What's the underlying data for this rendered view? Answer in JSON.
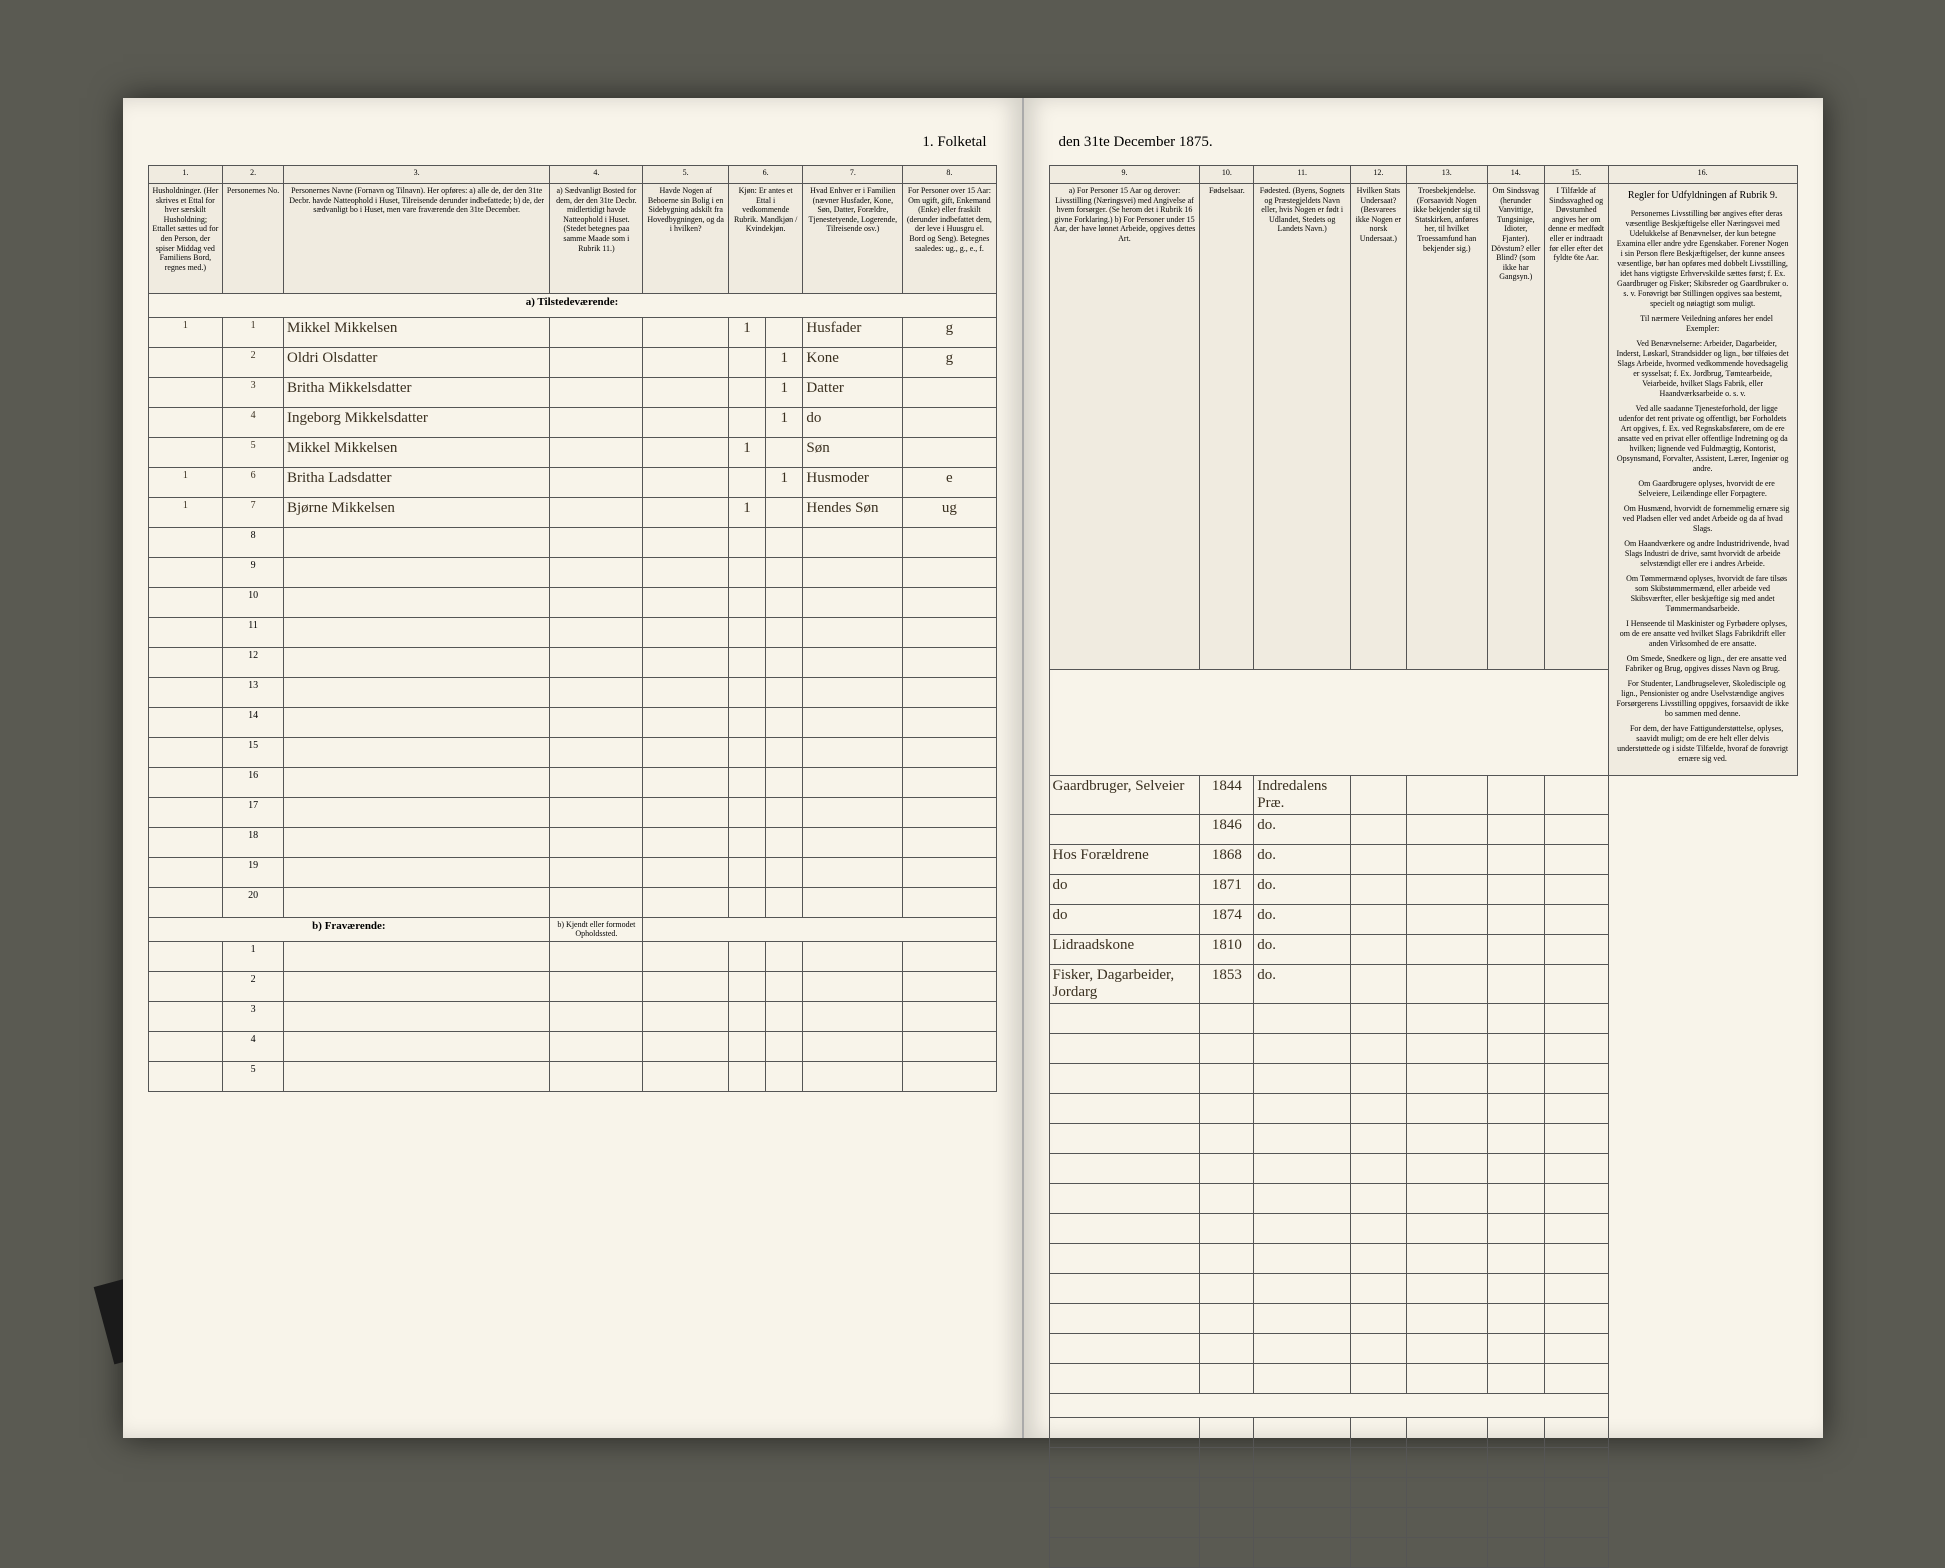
{
  "title_left": "1. Folketal",
  "title_right": "den 31te December 1875.",
  "col_numbers_left": [
    "1.",
    "2.",
    "3.",
    "4.",
    "5.",
    "6.",
    "7.",
    "8."
  ],
  "col_numbers_right": [
    "9.",
    "10.",
    "11.",
    "12.",
    "13.",
    "14.",
    "15.",
    "16."
  ],
  "headers_left": {
    "c1": "Husholdninger. (Her skrives et Ettal for hver særskilt Husholdning; Ettallet sættes ud for den Person, der spiser Middag ved Familiens Bord, regnes med.)",
    "c2": "Personernes No.",
    "c3": "Personernes Navne (Fornavn og Tilnavn). Her opføres: a) alle de, der den 31te Decbr. havde Natteophold i Huset, Tilreisende derunder indbefattede; b) de, der sædvanligt bo i Huset, men vare fraværende den 31te December.",
    "c4": "a) Sædvanligt Bosted for dem, der den 31te Decbr. midlertidigt havde Natteophold i Huset. (Stedet betegnes paa samme Maade som i Rubrik 11.)",
    "c5": "Havde Nogen af Beboerne sin Bolig i en Sidebygning adskilt fra Hovedbygningen, og da i hvilken?",
    "c6": "Kjøn: Er antes et Ettal i vedkommende Rubrik. Mandkjøn / Kvindekjøn.",
    "c7": "Hvad Enhver er i Familien (nævner Husfader, Kone, Søn, Datter, Forældre, Tjenestetyende, Logerende, Tilreisende osv.)",
    "c8": "For Personer over 15 Aar: Om ugift, gift, Enkemand (Enke) eller fraskilt (derunder indbefattet dem, der leve i Huusgru el. Bord og Seng). Betegnes saaledes: ug., g., e., f."
  },
  "headers_right": {
    "c9": "a) For Personer 15 Aar og derover: Livsstilling (Næringsvei) med Angivelse af hvem forsørger. (Se herom det i Rubrik 16 givne Forklaring.) b) For Personer under 15 Aar, der have lønnet Arbeide, opgives dettes Art.",
    "c10": "Fødselsaar.",
    "c11": "Fødested. (Byens, Sognets og Præstegjeldets Navn eller, hvis Nogen er født i Udlandet, Stedets og Landets Navn.)",
    "c12": "Hvilken Stats Undersaat? (Besvarees ikke Nogen er norsk Undersaat.)",
    "c13": "Troesbekjendelse. (Forsaavidt Nogen ikke bekjender sig til Statskirken, anføres her, til hvilket Troessamfund han bekjender sig.)",
    "c14": "Om Sindssvag (herunder Vanvittige, Tungsinige, Idioter, Fjanter). Dövstum? eller Blind? (som ikke har Gangsyn.)",
    "c15": "I Tilfælde af Sindssvaghed og Døvstumhed angives her om denne er medfødt eller er indtraadt før eller efter det fyldte 6te Aar.",
    "c16": "Regler for Udfyldningen af Rubrik 9."
  },
  "section_a": "a) Tilstedeværende:",
  "section_b": "b) Fraværende:",
  "section_b_col4": "b) Kjendt eller formodet Opholdssted.",
  "rows": [
    {
      "hh": "1",
      "no": "1",
      "name": "Mikkel Mikkelsen",
      "c4": "",
      "c5": "",
      "c6a": "1",
      "c6b": "",
      "c7": "Husfader",
      "c8": "g",
      "c9": "Gaardbruger, Selveier",
      "c10": "1844",
      "c11": "Indredalens Præ.",
      "c12": "",
      "c13": "",
      "c14": "",
      "c15": ""
    },
    {
      "hh": "",
      "no": "2",
      "name": "Oldri Olsdatter",
      "c4": "",
      "c5": "",
      "c6a": "",
      "c6b": "1",
      "c7": "Kone",
      "c8": "g",
      "c9": "",
      "c10": "1846",
      "c11": "do.",
      "c12": "",
      "c13": "",
      "c14": "",
      "c15": ""
    },
    {
      "hh": "",
      "no": "3",
      "name": "Britha Mikkelsdatter",
      "c4": "",
      "c5": "",
      "c6a": "",
      "c6b": "1",
      "c7": "Datter",
      "c8": "",
      "c9": "Hos Forældrene",
      "c10": "1868",
      "c11": "do.",
      "c12": "",
      "c13": "",
      "c14": "",
      "c15": ""
    },
    {
      "hh": "",
      "no": "4",
      "name": "Ingeborg Mikkelsdatter",
      "c4": "",
      "c5": "",
      "c6a": "",
      "c6b": "1",
      "c7": "do",
      "c8": "",
      "c9": "do",
      "c10": "1871",
      "c11": "do.",
      "c12": "",
      "c13": "",
      "c14": "",
      "c15": ""
    },
    {
      "hh": "",
      "no": "5",
      "name": "Mikkel Mikkelsen",
      "c4": "",
      "c5": "",
      "c6a": "1",
      "c6b": "",
      "c7": "Søn",
      "c8": "",
      "c9": "do",
      "c10": "1874",
      "c11": "do.",
      "c12": "",
      "c13": "",
      "c14": "",
      "c15": ""
    },
    {
      "hh": "1",
      "no": "6",
      "name": "Britha Ladsdatter",
      "c4": "",
      "c5": "",
      "c6a": "",
      "c6b": "1",
      "c7": "Husmoder",
      "c8": "e",
      "c9": "Lidraadskone",
      "c10": "1810",
      "c11": "do.",
      "c12": "",
      "c13": "",
      "c14": "",
      "c15": ""
    },
    {
      "hh": "1",
      "no": "7",
      "name": "Bjørne Mikkelsen",
      "c4": "",
      "c5": "",
      "c6a": "1",
      "c6b": "",
      "c7": "Hendes Søn",
      "c8": "ug",
      "c9": "Fisker, Dagarbeider, Jordarg",
      "c10": "1853",
      "c11": "do.",
      "c12": "",
      "c13": "",
      "c14": "",
      "c15": ""
    }
  ],
  "empty_rows_a": [
    8,
    9,
    10,
    11,
    12,
    13,
    14,
    15,
    16,
    17,
    18,
    19,
    20
  ],
  "empty_rows_b": [
    1,
    2,
    3,
    4,
    5
  ],
  "instructions": {
    "title": "Regler for Udfyldningen af Rubrik 9.",
    "paragraphs": [
      "Personernes Livsstilling bør angives efter deras væsentlige Beskjæftigelse eller Næringsvei med Udelukkelse af Benævnelser, der kun betegne Examina eller andre ydre Egenskaber. Forener Nogen i sin Person flere Beskjæftigelser, der kunne ansees væsentlige, bør han opføres med dobbelt Livsstilling, idet hans vigtigste Erhvervskilde sættes først; f. Ex. Gaardbruger og Fisker; Skibsreder og Gaardbruker o. s. v. Forøvrigt bør Stillingen opgives saa bestemt, specielt og nøiagtigt som muligt.",
      "Til nærmere Veiledning anføres her endel Exempler:",
      "Ved Benævnelserne: Arbeider, Dagarbeider, Inderst, Løskarl, Strandsidder og lign., bør tilføies det Slags Arbeide, hvormed vedkommende hovedsagelig er sysselsat; f. Ex. Jordbrug, Tømtearbeide, Veiarbeide, hvilket Slags Fabrik, eller Haandværksarbeide o. s. v.",
      "Ved alle saadanne Tjenesteforhold, der ligge udenfor det rent private og offentligt, bør Forholdets Art opgives, f. Ex. ved Regnskabsførere, om de ere ansatte ved en privat eller offentlige Indretning og da hvilken; lignende ved Fuldmægtig, Kontorist, Opsynsmand, Forvalter, Assistent, Lærer, Ingeniør og andre.",
      "Om Gaardbrugere oplyses, hvorvidt de ere Selveiere, Leilændinge eller Forpagtere.",
      "Om Husmænd, hvorvidt de fornemmelig ernære sig ved Pladsen eller ved andet Arbeide og da af hvad Slags.",
      "Om Haandværkere og andre Industridrivende, hvad Slags Industri de drive, samt hvorvidt de arbeide selvstændigt eller ere i andres Arbeide.",
      "Om Tømmermænd oplyses, hvorvidt de fare tilsøs som Skibstømmermænd, eller arbeide ved Skibsværfter, eller beskjæftige sig med andet Tømmermandsarbeide.",
      "I Henseende til Maskinister og Fyrbødere oplyses, om de ere ansatte ved hvilket Slags Fabrikdrift eller anden Virksomhed de ere ansatte.",
      "Om Smede, Snedkere og lign., der ere ansatte ved Fabriker og Brug, opgives disses Navn og Brug.",
      "For Studenter, Landbrugselever, Skoledisciple og lign., Pensionister og andre Uselvstændige angives Forsørgerens Livsstilling oppgives, forsaavidt de ikke bo sammen med denne.",
      "For dem, der have Fattigunderstøttelse, oplyses, saavidt muligt; om de ere helt eller delvis understøttede og i sidste Tilfælde, hvoraf de forøvrigt ernære sig ved."
    ]
  }
}
